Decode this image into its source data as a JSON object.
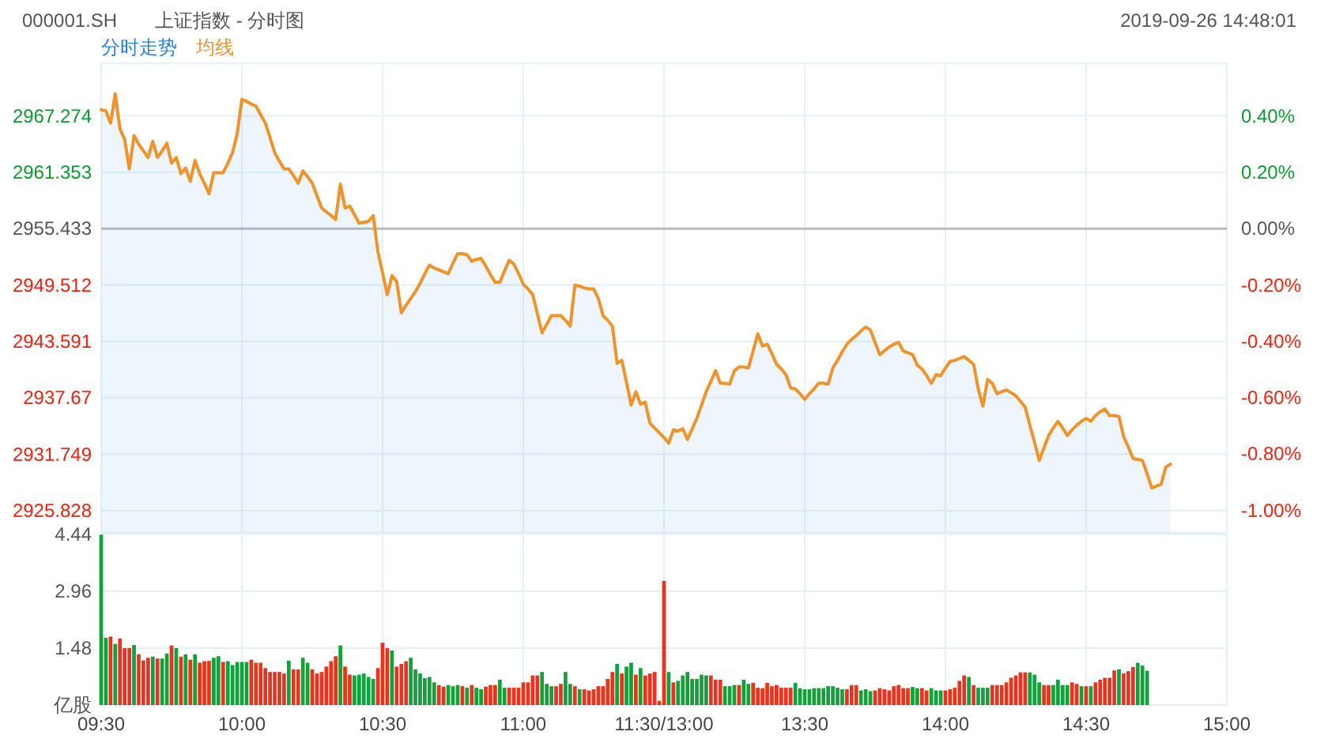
{
  "chart_data": [
    {
      "type": "line",
      "title": "000001.SH",
      "subtitle": "上证指数 - 分时图",
      "annotations": [
        "2019-09-26 14:48:01"
      ],
      "categories": [
        null,
        null,
        null,
        null,
        null,
        null,
        null,
        null,
        null,
        null,
        null,
        null,
        null,
        null,
        null,
        null,
        null,
        null,
        null,
        null,
        null,
        null,
        null,
        null,
        null,
        null,
        null,
        null,
        null,
        null,
        null,
        null,
        null,
        null,
        null,
        null,
        null,
        null,
        null,
        null,
        null,
        null,
        null,
        null,
        null,
        null,
        null,
        null,
        null,
        null,
        null,
        null,
        null,
        null,
        null,
        null,
        null,
        null,
        null,
        null,
        null,
        null,
        null,
        null,
        null,
        null,
        null,
        null,
        null,
        null,
        null,
        null,
        null,
        null,
        null,
        null,
        null,
        null,
        null,
        null,
        null,
        null,
        null,
        null,
        null,
        null,
        null,
        null,
        null,
        null,
        null,
        null,
        null,
        null,
        null,
        null,
        null,
        null,
        null,
        null,
        null,
        null,
        null,
        null,
        null,
        null,
        null,
        null,
        null,
        null,
        null,
        null,
        null,
        null,
        null,
        null,
        null,
        null,
        null,
        null,
        null,
        null,
        null,
        null,
        null,
        null,
        null,
        null,
        null,
        null,
        null,
        null,
        null,
        null,
        null,
        null,
        null,
        null,
        null,
        null,
        null,
        null,
        null,
        null,
        null,
        null,
        null,
        null,
        null,
        null,
        null,
        null,
        null,
        null,
        null,
        null,
        null,
        null,
        null,
        null,
        null,
        null,
        null,
        null,
        null,
        null,
        null,
        null,
        null,
        null,
        null,
        null,
        null,
        null,
        null,
        null,
        null,
        null,
        null,
        null,
        null,
        null,
        null,
        null,
        null,
        null,
        null,
        null,
        null,
        null,
        null,
        null,
        null,
        null,
        null,
        null,
        null,
        null,
        null,
        null,
        null,
        null,
        null,
        null,
        null,
        null,
        null,
        null,
        null,
        null,
        null,
        null,
        null,
        null,
        null,
        null,
        null,
        null,
        null,
        null,
        null,
        null,
        null,
        null,
        null,
        null,
        null,
        null,
        null,
        null,
        null,
        null,
        null,
        null,
        null,
        null,
        null,
        null,
        null,
        null,
        null
      ],
      "series": [
        {
          "name": "分时走势",
          "type": "area",
          "color": "#2a7ee0",
          "values": [
            2967.9,
            2967.8,
            2966.5,
            2969.6,
            2965.9,
            2964.8,
            2961.7,
            2965.2,
            2964.3,
            2963.6,
            2962.9,
            2964.6,
            2962.9,
            2963.6,
            2964.4,
            2962.3,
            2962.9,
            2961.2,
            2961.8,
            2960.4,
            2962.6,
            2961.2,
            2960.2,
            2959.1,
            2961.3,
            2961.3,
            2961.3,
            2962.3,
            2963.4,
            2965.4,
            2969.0,
            2968.8,
            2968.5,
            2968.3,
            2967.4,
            2966.5,
            2965.0,
            2963.4,
            2962.5,
            2961.7,
            2961.7,
            2961.0,
            2960.2,
            2961.5,
            2960.9,
            2960.2,
            2958.9,
            2957.6,
            2957.2,
            2956.8,
            2956.4,
            2960.1,
            2957.6,
            2957.8,
            2956.9,
            2956.0,
            2956.1,
            2956.2,
            2956.8,
            2953.0,
            2950.8,
            2948.5,
            2950.5,
            2949.9,
            2946.6,
            2947.4,
            2948.1,
            2948.8,
            2949.7,
            2950.7,
            2951.6,
            2951.3,
            2951.1,
            2950.9,
            2950.7,
            2951.8,
            2952.8,
            2952.8,
            2952.7,
            2952.0,
            2952.2,
            2952.3,
            2951.5,
            2950.6,
            2949.8,
            2949.8,
            2951.0,
            2952.1,
            2951.7,
            2950.7,
            2949.6,
            2949.1,
            2948.5,
            2946.5,
            2944.5,
            2945.4,
            2946.3,
            2946.3,
            2946.3,
            2945.8,
            2945.2,
            2949.5,
            2949.4,
            2949.2,
            2949.1,
            2949.1,
            2948.1,
            2946.3,
            2945.8,
            2945.2,
            2941.3,
            2941.6,
            2939.3,
            2936.9,
            2938.3,
            2937.0,
            2937.2,
            2935.0,
            2934.5,
            2934.0,
            2933.5,
            2932.9,
            2934.3,
            2934.2,
            2934.4,
            2933.3,
            2934.4,
            2935.5,
            2936.9,
            2938.3,
            2939.4,
            2940.5,
            2939.2,
            2939.2,
            2939.1,
            2940.5,
            2940.9,
            2940.9,
            2940.8,
            2942.6,
            2944.4,
            2943.1,
            2943.3,
            2942.3,
            2941.2,
            2940.7,
            2940.1,
            2938.7,
            2938.6,
            2938.1,
            2937.5,
            2938.1,
            2938.6,
            2939.2,
            2939.2,
            2939.1,
            2940.8,
            2941.6,
            2942.5,
            2943.3,
            2943.8,
            2944.2,
            2944.7,
            2945.1,
            2944.8,
            2943.5,
            2942.2,
            2942.6,
            2943.0,
            2943.3,
            2943.5,
            2942.6,
            2942.4,
            2942.2,
            2941.1,
            2940.7,
            2940.0,
            2939.2,
            2940.1,
            2940.0,
            2940.8,
            2941.5,
            2941.6,
            2941.8,
            2942.0,
            2941.6,
            2941.2,
            2938.6,
            2936.8,
            2939.6,
            2939.2,
            2938.1,
            2938.3,
            2938.5,
            2938.2,
            2937.9,
            2937.3,
            2936.7,
            2934.8,
            2933.0,
            2931.1,
            2932.4,
            2933.7,
            2934.5,
            2935.2,
            2934.5,
            2933.7,
            2934.3,
            2934.8,
            2935.2,
            2935.5,
            2935.2,
            2935.8,
            2936.2,
            2936.5,
            2935.8,
            2935.8,
            2935.7,
            2933.6,
            2932.5,
            2931.3,
            2931.2,
            2931.1,
            2929.7,
            2928.2,
            2928.4,
            2928.6,
            2930.4,
            2930.7,
            null,
            null,
            null,
            null,
            null,
            null,
            null,
            null,
            null,
            null,
            null,
            null
          ]
        },
        {
          "name": "均线",
          "color": "#f0932b",
          "values": [
            2967.9,
            2967.8,
            2966.5,
            2969.6,
            2965.9,
            2964.8,
            2961.7,
            2965.2,
            2964.3,
            2963.6,
            2962.9,
            2964.6,
            2962.9,
            2963.6,
            2964.4,
            2962.3,
            2962.9,
            2961.2,
            2961.8,
            2960.4,
            2962.6,
            2961.2,
            2960.2,
            2959.1,
            2961.3,
            2961.3,
            2961.3,
            2962.3,
            2963.4,
            2965.4,
            2969.0,
            2968.8,
            2968.5,
            2968.3,
            2967.4,
            2966.5,
            2965.0,
            2963.4,
            2962.5,
            2961.7,
            2961.7,
            2961.0,
            2960.2,
            2961.5,
            2960.9,
            2960.2,
            2958.9,
            2957.6,
            2957.2,
            2956.8,
            2956.4,
            2960.1,
            2957.6,
            2957.8,
            2956.9,
            2956.0,
            2956.1,
            2956.2,
            2956.8,
            2953.0,
            2950.8,
            2948.5,
            2950.5,
            2949.9,
            2946.6,
            2947.4,
            2948.1,
            2948.8,
            2949.7,
            2950.7,
            2951.6,
            2951.3,
            2951.1,
            2950.9,
            2950.7,
            2951.8,
            2952.8,
            2952.8,
            2952.7,
            2952.0,
            2952.2,
            2952.3,
            2951.5,
            2950.6,
            2949.8,
            2949.8,
            2951.0,
            2952.1,
            2951.7,
            2950.7,
            2949.6,
            2949.1,
            2948.5,
            2946.5,
            2944.5,
            2945.4,
            2946.3,
            2946.3,
            2946.3,
            2945.8,
            2945.2,
            2949.5,
            2949.4,
            2949.2,
            2949.1,
            2949.1,
            2948.1,
            2946.3,
            2945.8,
            2945.2,
            2941.3,
            2941.6,
            2939.3,
            2936.9,
            2938.3,
            2937.0,
            2937.2,
            2935.0,
            2934.5,
            2934.0,
            2933.5,
            2932.9,
            2934.3,
            2934.2,
            2934.4,
            2933.3,
            2934.4,
            2935.5,
            2936.9,
            2938.3,
            2939.4,
            2940.5,
            2939.2,
            2939.2,
            2939.1,
            2940.5,
            2940.9,
            2940.9,
            2940.8,
            2942.6,
            2944.4,
            2943.1,
            2943.3,
            2942.3,
            2941.2,
            2940.7,
            2940.1,
            2938.7,
            2938.6,
            2938.1,
            2937.5,
            2938.1,
            2938.6,
            2939.2,
            2939.2,
            2939.1,
            2940.8,
            2941.6,
            2942.5,
            2943.3,
            2943.8,
            2944.2,
            2944.7,
            2945.1,
            2944.8,
            2943.5,
            2942.2,
            2942.6,
            2943.0,
            2943.3,
            2943.5,
            2942.6,
            2942.4,
            2942.2,
            2941.1,
            2940.7,
            2940.0,
            2939.2,
            2940.1,
            2940.0,
            2940.8,
            2941.5,
            2941.6,
            2941.8,
            2942.0,
            2941.6,
            2941.2,
            2938.6,
            2936.8,
            2939.6,
            2939.2,
            2938.1,
            2938.3,
            2938.5,
            2938.2,
            2937.9,
            2937.3,
            2936.7,
            2934.8,
            2933.0,
            2931.1,
            2932.4,
            2933.7,
            2934.5,
            2935.2,
            2934.5,
            2933.7,
            2934.3,
            2934.8,
            2935.2,
            2935.5,
            2935.2,
            2935.8,
            2936.2,
            2936.5,
            2935.8,
            2935.8,
            2935.7,
            2933.6,
            2932.5,
            2931.3,
            2931.2,
            2931.1,
            2929.7,
            2928.2,
            2928.4,
            2928.6,
            2930.4,
            2930.7,
            null,
            null,
            null,
            null,
            null,
            null,
            null,
            null,
            null,
            null,
            null,
            null
          ]
        }
      ],
      "ylim": [
        2923.5,
        2972.8
      ],
      "yticks": [
        2925.828,
        2931.749,
        2937.67,
        2943.591,
        2949.512,
        2955.433,
        2961.353,
        2967.274
      ],
      "y2lim": [
        -1.08,
        0.588
      ],
      "y2ticks": [
        {
          "value": -1.0,
          "label": "-1.00%"
        },
        {
          "value": -0.8,
          "label": "-0.80%"
        },
        {
          "value": -0.6,
          "label": "-0.60%"
        },
        {
          "value": -0.4,
          "label": "-0.40%"
        },
        {
          "value": -0.2,
          "label": "-0.20%"
        },
        {
          "value": 0,
          "label": "0.00%"
        },
        {
          "value": 0.2,
          "label": "0.20%"
        },
        {
          "value": 0.4,
          "label": "0.40%"
        }
      ],
      "ref_lines": [
        {
          "axis": "y",
          "value": 2955.433,
          "color": "#bbbbbb"
        }
      ],
      "grid": true,
      "tick_labels": "y"
    },
    {
      "type": "bar",
      "categories": [
        "09:30",
        null,
        null,
        null,
        null,
        null,
        null,
        null,
        null,
        null,
        null,
        null,
        null,
        null,
        null,
        null,
        null,
        null,
        null,
        null,
        null,
        null,
        null,
        null,
        null,
        null,
        null,
        null,
        null,
        null,
        "10:00",
        null,
        null,
        null,
        null,
        null,
        null,
        null,
        null,
        null,
        null,
        null,
        null,
        null,
        null,
        null,
        null,
        null,
        null,
        null,
        null,
        null,
        null,
        null,
        null,
        null,
        null,
        null,
        null,
        null,
        "10:30",
        null,
        null,
        null,
        null,
        null,
        null,
        null,
        null,
        null,
        null,
        null,
        null,
        null,
        null,
        null,
        null,
        null,
        null,
        null,
        null,
        null,
        null,
        null,
        null,
        null,
        null,
        null,
        null,
        null,
        "11:00",
        null,
        null,
        null,
        null,
        null,
        null,
        null,
        null,
        null,
        null,
        null,
        null,
        null,
        null,
        null,
        null,
        null,
        null,
        null,
        null,
        null,
        null,
        null,
        null,
        null,
        null,
        null,
        null,
        null,
        "11:30/13:00",
        null,
        null,
        null,
        null,
        null,
        null,
        null,
        null,
        null,
        null,
        null,
        null,
        null,
        null,
        null,
        null,
        null,
        null,
        null,
        null,
        null,
        null,
        null,
        null,
        null,
        null,
        null,
        null,
        null,
        "13:30",
        null,
        null,
        null,
        null,
        null,
        null,
        null,
        null,
        null,
        null,
        null,
        null,
        null,
        null,
        null,
        null,
        null,
        null,
        null,
        null,
        null,
        null,
        null,
        null,
        null,
        null,
        null,
        null,
        null,
        "14:00",
        null,
        null,
        null,
        null,
        null,
        null,
        null,
        null,
        null,
        null,
        null,
        null,
        null,
        null,
        null,
        null,
        null,
        null,
        null,
        null,
        null,
        null,
        null,
        null,
        null,
        null,
        null,
        null,
        null,
        "14:30",
        null,
        null,
        null,
        null,
        null,
        null,
        null,
        null,
        null,
        null,
        null,
        null,
        null,
        null,
        null,
        null,
        null,
        null,
        null,
        null,
        null,
        null,
        null,
        null,
        null,
        null,
        null,
        null,
        null,
        "15:00"
      ],
      "values": [
        4.43,
        1.75,
        1.78,
        1.59,
        1.73,
        1.48,
        1.48,
        1.56,
        1.32,
        1.16,
        1.23,
        1.26,
        1.21,
        1.21,
        1.34,
        1.55,
        1.48,
        1.26,
        1.32,
        1.18,
        1.32,
        1.1,
        1.14,
        1.15,
        1.23,
        1.27,
        1.12,
        1.14,
        1.04,
        1.12,
        1.12,
        1.12,
        1.18,
        1.1,
        1.1,
        0.96,
        0.86,
        0.86,
        0.86,
        0.82,
        1.15,
        0.93,
        0.93,
        1.23,
        1.1,
        0.93,
        0.82,
        0.86,
        1.0,
        1.14,
        1.27,
        1.55,
        1.0,
        0.79,
        0.77,
        0.79,
        0.82,
        0.73,
        0.68,
        0.96,
        1.62,
        1.48,
        1.42,
        1.0,
        1.07,
        1.14,
        1.23,
        0.93,
        0.82,
        0.7,
        0.73,
        0.59,
        0.52,
        0.48,
        0.52,
        0.49,
        0.52,
        0.49,
        0.45,
        0.52,
        0.45,
        0.41,
        0.48,
        0.52,
        0.52,
        0.66,
        0.45,
        0.45,
        0.45,
        0.45,
        0.59,
        0.59,
        0.77,
        0.77,
        0.86,
        0.55,
        0.49,
        0.49,
        0.55,
        0.86,
        0.55,
        0.49,
        0.41,
        0.41,
        0.38,
        0.41,
        0.49,
        0.49,
        0.68,
        0.86,
        1.07,
        0.82,
        1.0,
        1.1,
        0.79,
        0.96,
        0.77,
        0.82,
        0.86,
        0.11,
        3.23,
        0.86,
        0.59,
        0.63,
        0.77,
        0.86,
        0.68,
        0.68,
        0.79,
        0.77,
        0.77,
        0.66,
        0.66,
        0.49,
        0.49,
        0.52,
        0.52,
        0.66,
        0.55,
        0.58,
        0.45,
        0.44,
        0.58,
        0.49,
        0.52,
        0.45,
        0.45,
        0.45,
        0.58,
        0.44,
        0.41,
        0.41,
        0.44,
        0.44,
        0.44,
        0.49,
        0.49,
        0.45,
        0.41,
        0.41,
        0.52,
        0.52,
        0.38,
        0.41,
        0.36,
        0.38,
        0.44,
        0.41,
        0.38,
        0.49,
        0.52,
        0.44,
        0.44,
        0.47,
        0.44,
        0.44,
        0.38,
        0.44,
        0.38,
        0.38,
        0.38,
        0.41,
        0.45,
        0.63,
        0.77,
        0.73,
        0.52,
        0.45,
        0.45,
        0.45,
        0.52,
        0.52,
        0.52,
        0.59,
        0.71,
        0.77,
        0.85,
        0.85,
        0.85,
        0.79,
        0.59,
        0.52,
        0.52,
        0.52,
        0.66,
        0.52,
        0.52,
        0.59,
        0.55,
        0.49,
        0.49,
        0.49,
        0.59,
        0.66,
        0.71,
        0.71,
        0.9,
        0.93,
        0.82,
        0.88,
        0.99,
        1.1,
        1.03,
        0.89,
        null,
        null,
        null,
        null,
        null,
        null,
        null,
        null,
        null,
        null,
        null,
        null,
        null,
        null,
        null,
        null,
        null
      ],
      "colors": [
        "#12a13a",
        "#12a13a",
        "#e8341c",
        "#12a13a",
        "#e8341c",
        "#e8341c",
        "#e8341c",
        "#12a13a",
        "#e8341c",
        "#e8341c",
        "#e8341c",
        "#12a13a",
        "#e8341c",
        "#12a13a",
        "#12a13a",
        "#e8341c",
        "#12a13a",
        "#e8341c",
        "#12a13a",
        "#e8341c",
        "#12a13a",
        "#e8341c",
        "#e8341c",
        "#e8341c",
        "#12a13a",
        "#12a13a",
        "#e8341c",
        "#12a13a",
        "#12a13a",
        "#12a13a",
        "#12a13a",
        "#12a13a",
        "#e8341c",
        "#e8341c",
        "#e8341c",
        "#e8341c",
        "#e8341c",
        "#e8341c",
        "#e8341c",
        "#e8341c",
        "#12a13a",
        "#e8341c",
        "#e8341c",
        "#12a13a",
        "#12a13a",
        "#e8341c",
        "#e8341c",
        "#e8341c",
        "#e8341c",
        "#e8341c",
        "#e8341c",
        "#12a13a",
        "#e8341c",
        "#e8341c",
        "#12a13a",
        "#12a13a",
        "#12a13a",
        "#12a13a",
        "#12a13a",
        "#e8341c",
        "#e8341c",
        "#e8341c",
        "#12a13a",
        "#e8341c",
        "#e8341c",
        "#e8341c",
        "#12a13a",
        "#12a13a",
        "#12a13a",
        "#12a13a",
        "#12a13a",
        "#12a13a",
        "#e8341c",
        "#e8341c",
        "#12a13a",
        "#12a13a",
        "#12a13a",
        "#e8341c",
        "#12a13a",
        "#e8341c",
        "#12a13a",
        "#12a13a",
        "#e8341c",
        "#e8341c",
        "#e8341c",
        "#12a13a",
        "#12a13a",
        "#e8341c",
        "#e8341c",
        "#e8341c",
        "#e8341c",
        "#e8341c",
        "#e8341c",
        "#e8341c",
        "#12a13a",
        "#12a13a",
        "#12a13a",
        "#e8341c",
        "#e8341c",
        "#12a13a",
        "#12a13a",
        "#e8341c",
        "#12a13a",
        "#e8341c",
        "#e8341c",
        "#e8341c",
        "#e8341c",
        "#e8341c",
        "#e8341c",
        "#e8341c",
        "#12a13a",
        "#e8341c",
        "#12a13a",
        "#12a13a",
        "#e8341c",
        "#12a13a",
        "#e8341c",
        "#e8341c",
        "#e8341c",
        "#e8341c",
        "#e8341c",
        "#12a13a",
        "#e8341c",
        "#12a13a",
        "#12a13a",
        "#12a13a",
        "#12a13a",
        "#12a13a",
        "#12a13a",
        "#12a13a",
        "#e8341c",
        "#e8341c",
        "#e8341c",
        "#12a13a",
        "#12a13a",
        "#12a13a",
        "#e8341c",
        "#12a13a",
        "#12a13a",
        "#e8341c",
        "#e8341c",
        "#e8341c",
        "#e8341c",
        "#e8341c",
        "#e8341c",
        "#e8341c",
        "#e8341c",
        "#e8341c",
        "#12a13a",
        "#12a13a",
        "#12a13a",
        "#12a13a",
        "#12a13a",
        "#12a13a",
        "#12a13a",
        "#12a13a",
        "#12a13a",
        "#12a13a",
        "#12a13a",
        "#e8341c",
        "#e8341c",
        "#e8341c",
        "#12a13a",
        "#12a13a",
        "#12a13a",
        "#e8341c",
        "#e8341c",
        "#e8341c",
        "#e8341c",
        "#e8341c",
        "#e8341c",
        "#e8341c",
        "#e8341c",
        "#12a13a",
        "#12a13a",
        "#e8341c",
        "#e8341c",
        "#12a13a",
        "#12a13a",
        "#12a13a",
        "#e8341c",
        "#e8341c",
        "#e8341c",
        "#e8341c",
        "#e8341c",
        "#12a13a",
        "#e8341c",
        "#12a13a",
        "#12a13a",
        "#12a13a",
        "#e8341c",
        "#e8341c",
        "#e8341c",
        "#e8341c",
        "#e8341c",
        "#e8341c",
        "#e8341c",
        "#e8341c",
        "#12a13a",
        "#12a13a",
        "#12a13a",
        "#e8341c",
        "#e8341c",
        "#12a13a",
        "#12a13a",
        "#12a13a",
        "#12a13a",
        "#e8341c",
        "#e8341c",
        "#12a13a",
        "#e8341c",
        "#12a13a",
        "#e8341c",
        "#e8341c",
        "#e8341c",
        "#e8341c",
        "#e8341c",
        "#12a13a",
        "#e8341c",
        "#e8341c",
        "#e8341c",
        "#12a13a",
        "#12a13a",
        "#12a13a",
        null,
        null,
        null,
        null,
        null,
        null,
        null,
        null,
        null,
        null,
        null,
        null,
        null,
        null,
        null,
        null,
        null
      ],
      "ylim": [
        0,
        4.44
      ],
      "yticks": [
        {
          "value": 0,
          "label": "亿股"
        },
        1.48,
        2.96,
        4.44
      ],
      "grid": true
    }
  ]
}
